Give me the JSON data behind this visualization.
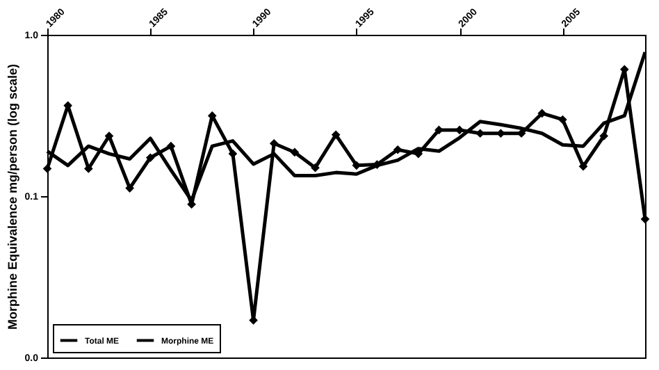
{
  "chart_data": {
    "type": "line",
    "ylabel": "Morphine Equivalence mg/person (log scale)",
    "log": "y",
    "xlim": [
      1980,
      2009
    ],
    "xticks": [
      1980,
      1985,
      1990,
      1995,
      2000,
      2005
    ],
    "ylim": [
      0.01,
      1
    ],
    "yticks": [
      {
        "value": 0.01,
        "label": "0.0"
      },
      {
        "value": 0.1,
        "label": "0.1"
      },
      {
        "value": 1,
        "label": "1.0"
      }
    ],
    "x": [
      1980,
      1981,
      1982,
      1983,
      1984,
      1985,
      1986,
      1987,
      1988,
      1989,
      1990,
      1991,
      1992,
      1993,
      1994,
      1995,
      1996,
      1997,
      1998,
      1999,
      2000,
      2001,
      2002,
      2003,
      2004,
      2005,
      2006,
      2007,
      2008,
      2009
    ],
    "grid": false,
    "legend": "bottom left",
    "line_style": "solid",
    "series": [
      {
        "name": "Total ME",
        "color": "#000000",
        "marker": "none",
        "values": [
          0.19,
          0.155,
          0.204,
          0.183,
          0.17,
          0.228,
          0.145,
          0.094,
          0.204,
          0.22,
          0.158,
          0.183,
          0.134,
          0.134,
          0.14,
          0.137,
          0.155,
          0.167,
          0.197,
          0.19,
          0.23,
          0.29,
          0.277,
          0.263,
          0.245,
          0.208,
          0.204,
          0.283,
          0.315,
          0.78
        ]
      },
      {
        "name": "Morphine ME",
        "color": "#000000",
        "marker": "diamond",
        "values": [
          0.148,
          0.364,
          0.148,
          0.236,
          0.112,
          0.173,
          0.204,
          0.089,
          0.315,
          0.183,
          0.017,
          0.212,
          0.187,
          0.15,
          0.24,
          0.155,
          0.157,
          0.194,
          0.183,
          0.257,
          0.257,
          0.245,
          0.245,
          0.245,
          0.326,
          0.298,
          0.153,
          0.236,
          0.61,
          0.072
        ]
      }
    ]
  }
}
